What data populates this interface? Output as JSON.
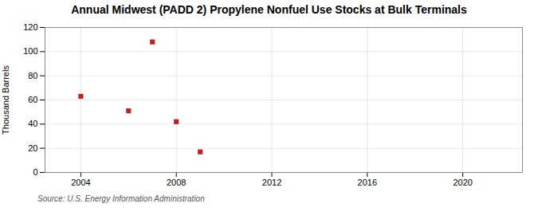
{
  "chart_data": {
    "type": "scatter",
    "title": "Annual Midwest (PADD 2) Propylene Nonfuel Use Stocks at Bulk Terminals",
    "ylabel": "Thousand Barrels",
    "source": "Source: U.S. Energy Information Administration",
    "x": [
      2004,
      2006,
      2007,
      2008,
      2009
    ],
    "values": [
      63,
      51,
      108,
      42,
      17
    ],
    "color": "#bb2222",
    "marker": "square",
    "xlim": [
      2002.5,
      2022.5
    ],
    "ylim": [
      0,
      120
    ],
    "xticks": [
      2004,
      2008,
      2012,
      2016,
      2020
    ],
    "yticks": [
      0,
      20,
      40,
      60,
      80,
      100,
      120
    ],
    "grid": true
  }
}
